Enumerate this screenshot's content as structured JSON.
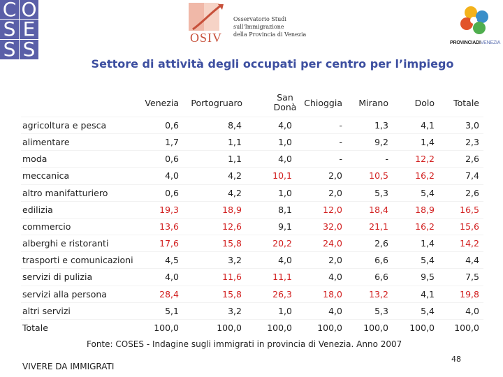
{
  "logos": {
    "coses_letters": [
      "C",
      "O",
      "S",
      "E",
      "S",
      "S"
    ],
    "osiv_word": "OSIV",
    "osiv_lines": [
      "Osservatorio Studi",
      "sull'Immigrazione",
      "della Provincia di Venezia"
    ],
    "provincia_bold": "PROVINCIADI",
    "provincia_light": "VENEZIA"
  },
  "title": "Settore di attività degli occupati per centro per l’impiego",
  "table": {
    "columns": [
      "Venezia",
      "Portogruaro",
      "San Donà",
      "Chioggia",
      "Mirano",
      "Dolo",
      "Totale"
    ],
    "rows": [
      {
        "label": "agricoltura e pesca",
        "values": [
          "0,6",
          "8,4",
          "4,0",
          "-",
          "1,3",
          "4,1",
          "3,0"
        ],
        "colors": [
          "d",
          "d",
          "d",
          "d",
          "d",
          "d",
          "d"
        ]
      },
      {
        "label": "alimentare",
        "values": [
          "1,7",
          "1,1",
          "1,0",
          "-",
          "9,2",
          "1,4",
          "2,3"
        ],
        "colors": [
          "d",
          "d",
          "d",
          "d",
          "d",
          "d",
          "d"
        ]
      },
      {
        "label": "moda",
        "values": [
          "0,6",
          "1,1",
          "4,0",
          "-",
          "-",
          "12,2",
          "2,6"
        ],
        "colors": [
          "d",
          "d",
          "d",
          "d",
          "d",
          "h",
          "d"
        ]
      },
      {
        "label": "meccanica",
        "values": [
          "4,0",
          "4,2",
          "10,1",
          "2,0",
          "10,5",
          "16,2",
          "7,4"
        ],
        "colors": [
          "d",
          "d",
          "h",
          "d",
          "h",
          "h",
          "d"
        ]
      },
      {
        "label": "altro manifatturiero",
        "values": [
          "0,6",
          "4,2",
          "1,0",
          "2,0",
          "5,3",
          "5,4",
          "2,6"
        ],
        "colors": [
          "d",
          "d",
          "d",
          "d",
          "d",
          "d",
          "d"
        ]
      },
      {
        "label": "edilizia",
        "values": [
          "19,3",
          "18,9",
          "8,1",
          "12,0",
          "18,4",
          "18,9",
          "16,5"
        ],
        "colors": [
          "h",
          "h",
          "d",
          "h",
          "h",
          "h",
          "h"
        ]
      },
      {
        "label": "commercio",
        "values": [
          "13,6",
          "12,6",
          "9,1",
          "32,0",
          "21,1",
          "16,2",
          "15,6"
        ],
        "colors": [
          "h",
          "h",
          "d",
          "h",
          "h",
          "h",
          "h"
        ]
      },
      {
        "label": "alberghi e ristoranti",
        "values": [
          "17,6",
          "15,8",
          "20,2",
          "24,0",
          "2,6",
          "1,4",
          "14,2"
        ],
        "colors": [
          "h",
          "h",
          "h",
          "h",
          "d",
          "d",
          "h"
        ]
      },
      {
        "label": "trasporti e comunicazioni",
        "values": [
          "4,5",
          "3,2",
          "4,0",
          "2,0",
          "6,6",
          "5,4",
          "4,4"
        ],
        "colors": [
          "d",
          "d",
          "d",
          "d",
          "d",
          "d",
          "d"
        ]
      },
      {
        "label": "servizi di pulizia",
        "values": [
          "4,0",
          "11,6",
          "11,1",
          "4,0",
          "6,6",
          "9,5",
          "7,5"
        ],
        "colors": [
          "d",
          "h",
          "h",
          "d",
          "d",
          "d",
          "d"
        ]
      },
      {
        "label": "servizi alla persona",
        "values": [
          "28,4",
          "15,8",
          "26,3",
          "18,0",
          "13,2",
          "4,1",
          "19,8"
        ],
        "colors": [
          "h",
          "h",
          "h",
          "h",
          "h",
          "d",
          "h"
        ]
      },
      {
        "label": "altri servizi",
        "values": [
          "5,1",
          "3,2",
          "1,0",
          "4,0",
          "5,3",
          "5,4",
          "4,0"
        ],
        "colors": [
          "d",
          "d",
          "d",
          "d",
          "d",
          "d",
          "d"
        ]
      },
      {
        "label": "Totale",
        "values": [
          "100,0",
          "100,0",
          "100,0",
          "100,0",
          "100,0",
          "100,0",
          "100,0"
        ],
        "colors": [
          "d",
          "d",
          "d",
          "d",
          "d",
          "d",
          "d"
        ]
      }
    ]
  },
  "colors": {
    "default": "#222222",
    "highlight": "#d21f1f",
    "title": "#3d4fa0",
    "coses_bg": "#5a5fa8"
  },
  "source": "Fonte: COSES - Indagine sugli immigrati in provincia di Venezia. Anno 2007",
  "footer": "VIVERE DA IMMIGRATI",
  "page_number": "48"
}
